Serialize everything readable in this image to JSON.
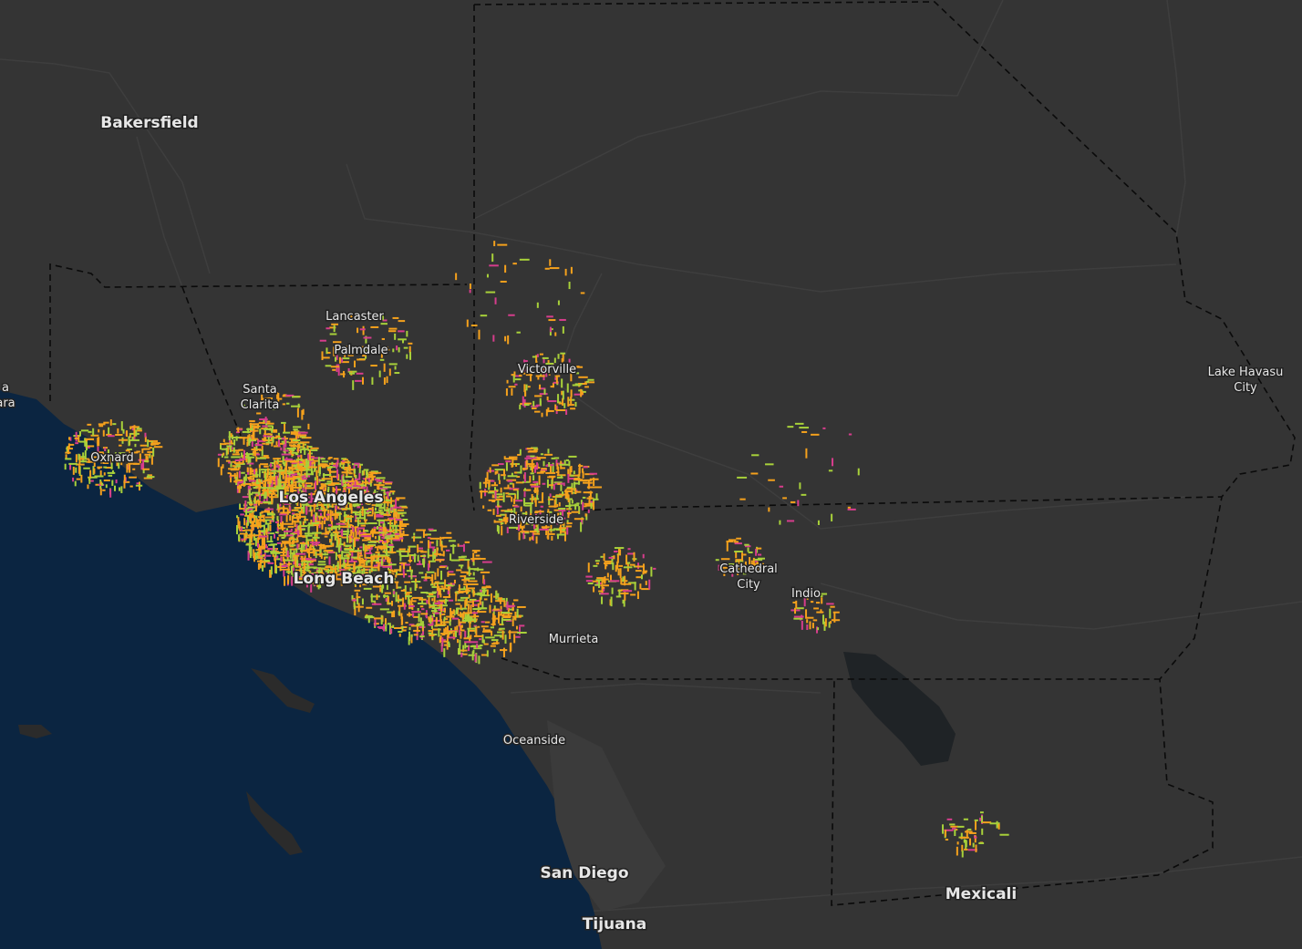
{
  "map": {
    "cities": [
      {
        "lines": [
          "Bakersfield"
        ],
        "size": "large"
      },
      {
        "lines": [
          "Lancaster"
        ],
        "size": "small"
      },
      {
        "lines": [
          "Palmdale"
        ],
        "size": "small"
      },
      {
        "lines": [
          "Santa",
          "Clarita"
        ],
        "size": "small"
      },
      {
        "lines": [
          "Victorville"
        ],
        "size": "small"
      },
      {
        "lines": [
          "Oxnard"
        ],
        "size": "small"
      },
      {
        "lines": [
          "Los Angeles"
        ],
        "size": "large"
      },
      {
        "lines": [
          "Riverside"
        ],
        "size": "small"
      },
      {
        "lines": [
          "Long Beach"
        ],
        "size": "large"
      },
      {
        "lines": [
          "Cathedral",
          "City"
        ],
        "size": "small"
      },
      {
        "lines": [
          "Indio"
        ],
        "size": "small"
      },
      {
        "lines": [
          "Murrieta"
        ],
        "size": "small"
      },
      {
        "lines": [
          "Lake Havasu",
          "City"
        ],
        "size": "small"
      },
      {
        "lines": [
          "Oceanside"
        ],
        "size": "small"
      },
      {
        "lines": [
          "San Diego"
        ],
        "size": "large"
      },
      {
        "lines": [
          "Tijuana"
        ],
        "size": "large"
      },
      {
        "lines": [
          "Mexicali"
        ],
        "size": "large"
      },
      {
        "lines": [
          "a",
          "ara"
        ],
        "size": "small"
      }
    ]
  }
}
